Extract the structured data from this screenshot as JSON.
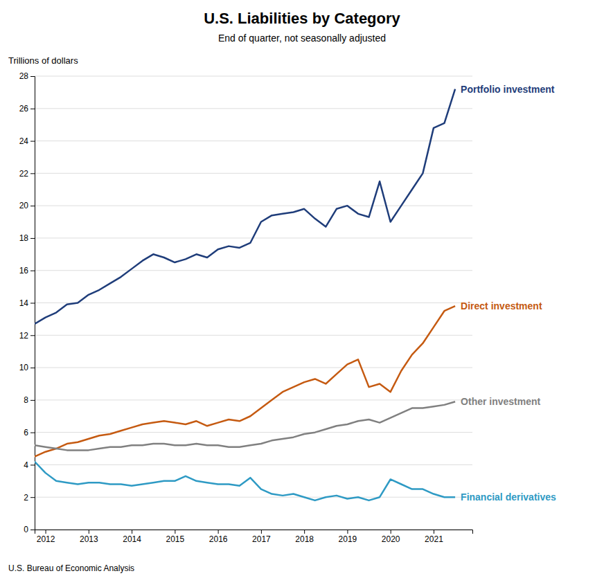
{
  "chart_data": {
    "type": "line",
    "title": "U.S. Liabilities by Category",
    "subtitle": "End of quarter, not seasonally adjusted",
    "ylabel": "Trillions of dollars",
    "source": "U.S. Bureau of Economic Analysis",
    "x": [
      2011.75,
      2012,
      2012.25,
      2012.5,
      2012.75,
      2013,
      2013.25,
      2013.5,
      2013.75,
      2014,
      2014.25,
      2014.5,
      2014.75,
      2015,
      2015.25,
      2015.5,
      2015.75,
      2016,
      2016.25,
      2016.5,
      2016.75,
      2017,
      2017.25,
      2017.5,
      2017.75,
      2018,
      2018.25,
      2018.5,
      2018.75,
      2019,
      2019.25,
      2019.5,
      2019.75,
      2020,
      2020.25,
      2020.5,
      2020.75,
      2021,
      2021.25,
      2021.5
    ],
    "series": [
      {
        "name": "Portfolio investment",
        "color": "#1f3d7a",
        "values": [
          12.7,
          13.1,
          13.4,
          13.9,
          14.0,
          14.5,
          14.8,
          15.2,
          15.6,
          16.1,
          16.6,
          17.0,
          16.8,
          16.5,
          16.7,
          17.0,
          16.8,
          17.3,
          17.5,
          17.4,
          17.7,
          19.0,
          19.4,
          19.5,
          19.6,
          19.8,
          19.2,
          18.7,
          19.8,
          20.0,
          19.5,
          19.3,
          21.5,
          19.0,
          20.0,
          21.0,
          22.0,
          24.8,
          25.1,
          27.2
        ]
      },
      {
        "name": "Direct investment",
        "color": "#c55a11",
        "values": [
          4.5,
          4.8,
          5.0,
          5.3,
          5.4,
          5.6,
          5.8,
          5.9,
          6.1,
          6.3,
          6.5,
          6.6,
          6.7,
          6.6,
          6.5,
          6.7,
          6.4,
          6.6,
          6.8,
          6.7,
          7.0,
          7.5,
          8.0,
          8.5,
          8.8,
          9.1,
          9.3,
          9.0,
          9.6,
          10.2,
          10.5,
          8.8,
          9.0,
          8.5,
          9.8,
          10.8,
          11.5,
          12.5,
          13.5,
          13.8
        ]
      },
      {
        "name": "Other investment",
        "color": "#808080",
        "values": [
          5.2,
          5.1,
          5.0,
          4.9,
          4.9,
          4.9,
          5.0,
          5.1,
          5.1,
          5.2,
          5.2,
          5.3,
          5.3,
          5.2,
          5.2,
          5.3,
          5.2,
          5.2,
          5.1,
          5.1,
          5.2,
          5.3,
          5.5,
          5.6,
          5.7,
          5.9,
          6.0,
          6.2,
          6.4,
          6.5,
          6.7,
          6.8,
          6.6,
          6.9,
          7.2,
          7.5,
          7.5,
          7.6,
          7.7,
          7.9
        ]
      },
      {
        "name": "Financial derivatives",
        "color": "#2e9ac4",
        "values": [
          4.2,
          3.5,
          3.0,
          2.9,
          2.8,
          2.9,
          2.9,
          2.8,
          2.8,
          2.7,
          2.8,
          2.9,
          3.0,
          3.0,
          3.3,
          3.0,
          2.9,
          2.8,
          2.8,
          2.7,
          3.2,
          2.5,
          2.2,
          2.1,
          2.2,
          2.0,
          1.8,
          2.0,
          2.1,
          1.9,
          2.0,
          1.8,
          2.0,
          3.1,
          2.8,
          2.5,
          2.5,
          2.2,
          2.0,
          2.0
        ]
      }
    ],
    "xlim": [
      2011.75,
      2021.9
    ],
    "xticks": [
      2012,
      2013,
      2014,
      2015,
      2016,
      2017,
      2018,
      2019,
      2020,
      2021
    ],
    "ylim": [
      0,
      28
    ],
    "yticks": [
      0,
      2,
      4,
      6,
      8,
      10,
      12,
      14,
      16,
      18,
      20,
      22,
      24,
      26,
      28
    ],
    "grid": true
  }
}
